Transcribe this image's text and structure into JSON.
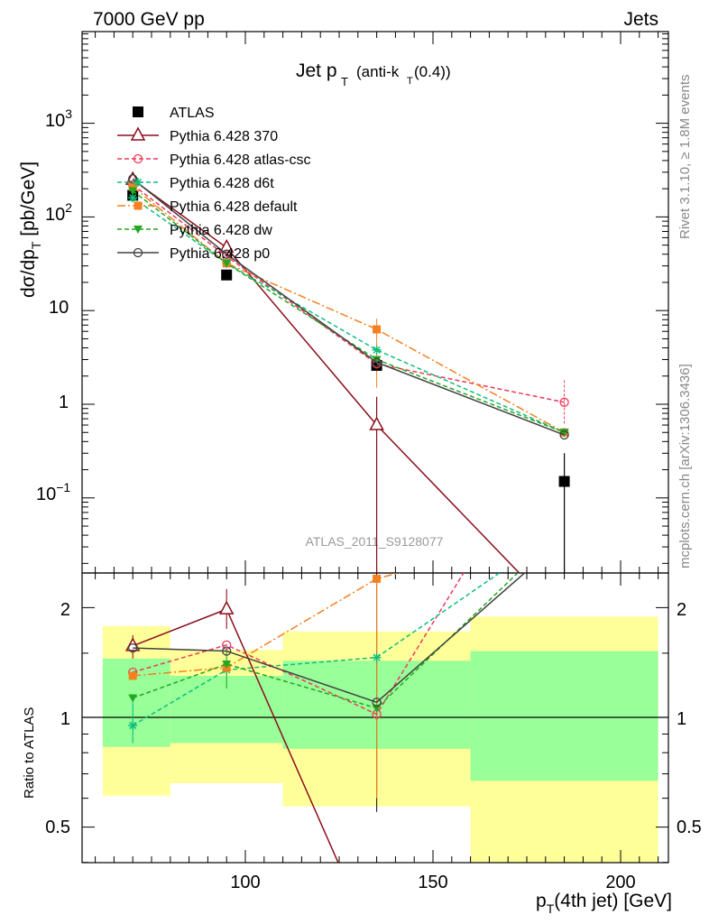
{
  "header": {
    "left": "7000 GeV pp",
    "right": "Jets"
  },
  "title": {
    "main": "Jet p",
    "sub": "T",
    "paren": "(anti-k",
    "paren_sub": "T",
    "paren_end": "(0.4))"
  },
  "side_text": {
    "rivet": "Rivet 3.1.10, ≥ 1.8M events",
    "mcplots": "mcplots.cern.ch [arXiv:1306.3436]"
  },
  "watermark": "ATLAS_2011_S9128077",
  "colors": {
    "atlas": "#000000",
    "p370": "#8b0f1e",
    "atlascsc": "#ee3a5a",
    "d6t": "#0fbf7a",
    "default": "#f58020",
    "dw": "#22a822",
    "p0": "#404040",
    "band_yellow": "#ffff99",
    "band_green": "#99ff99"
  },
  "chart_data": [
    {
      "type": "line",
      "panel": "main",
      "title": "Jet pT (anti-kT(0.4))",
      "ylabel": "dσ/dp_T [pb/GeV]",
      "yscale": "log",
      "ylim": [
        0.015,
        9000
      ],
      "xlim": [
        60,
        212
      ],
      "y_ticks": [
        "10⁻¹",
        "1",
        "10",
        "10²",
        "10³"
      ],
      "legend_position": "top-left",
      "series": [
        {
          "name": "ATLAS",
          "x": [
            70,
            95,
            135,
            185
          ],
          "y": [
            170,
            24,
            2.6,
            0.15
          ]
        },
        {
          "name": "Pythia 6.428 370",
          "x": [
            70,
            95,
            135,
            185
          ],
          "y": [
            250,
            47,
            0.6,
            0.005
          ]
        },
        {
          "name": "Pythia 6.428 atlas-csc",
          "x": [
            70,
            95,
            135,
            185
          ],
          "y": [
            220,
            38,
            2.7,
            1.05
          ]
        },
        {
          "name": "Pythia 6.428 d6t",
          "x": [
            70,
            95,
            135,
            185
          ],
          "y": [
            160,
            32,
            3.8,
            0.5
          ]
        },
        {
          "name": "Pythia 6.428 default",
          "x": [
            70,
            95,
            135,
            185
          ],
          "y": [
            210,
            32,
            6.3,
            0.5
          ]
        },
        {
          "name": "Pythia 6.428 dw",
          "x": [
            70,
            95,
            135,
            185
          ],
          "y": [
            190,
            32,
            3.0,
            0.5
          ]
        },
        {
          "name": "Pythia 6.428 p0",
          "x": [
            70,
            95,
            135,
            185
          ],
          "y": [
            255,
            40,
            2.8,
            0.47
          ]
        }
      ]
    },
    {
      "type": "line",
      "panel": "ratio",
      "ylabel": "Ratio to ATLAS",
      "xlabel": "p_T(4th jet) [GeV]",
      "yscale": "log",
      "ylim": [
        0.4,
        2.35
      ],
      "xlim": [
        60,
        212
      ],
      "x_ticks": [
        "100",
        "150",
        "200"
      ],
      "y_ticks": [
        "0.5",
        "1",
        "2"
      ],
      "bands": [
        {
          "x0": 62,
          "x1": 80,
          "yellow": [
            0.61,
            1.78
          ],
          "green": [
            0.83,
            1.45
          ]
        },
        {
          "x0": 80,
          "x1": 110,
          "yellow": [
            0.66,
            1.53
          ],
          "green": [
            0.85,
            1.3
          ]
        },
        {
          "x0": 110,
          "x1": 160,
          "yellow": [
            0.57,
            1.72
          ],
          "green": [
            0.82,
            1.43
          ]
        },
        {
          "x0": 160,
          "x1": 210,
          "yellow": [
            0.32,
            1.89
          ],
          "green": [
            0.67,
            1.52
          ]
        }
      ],
      "series": [
        {
          "name": "Pythia 6.428 370",
          "x": [
            70,
            95,
            135
          ],
          "y": [
            1.57,
            1.98,
            0.23
          ]
        },
        {
          "name": "Pythia 6.428 atlas-csc",
          "x": [
            70,
            95,
            135,
            185
          ],
          "y": [
            1.33,
            1.58,
            1.02,
            7.0
          ]
        },
        {
          "name": "Pythia 6.428 d6t",
          "x": [
            70,
            95,
            135,
            185
          ],
          "y": [
            0.95,
            1.35,
            1.46,
            3.3
          ]
        },
        {
          "name": "Pythia 6.428 default",
          "x": [
            70,
            95,
            135,
            185
          ],
          "y": [
            1.3,
            1.37,
            2.4,
            3.3
          ]
        },
        {
          "name": "Pythia 6.428 dw",
          "x": [
            70,
            95,
            135,
            185
          ],
          "y": [
            1.13,
            1.4,
            1.06,
            3.3
          ]
        },
        {
          "name": "Pythia 6.428 p0",
          "x": [
            70,
            95,
            135,
            185
          ],
          "y": [
            1.55,
            1.52,
            1.1,
            3.1
          ]
        }
      ]
    }
  ]
}
